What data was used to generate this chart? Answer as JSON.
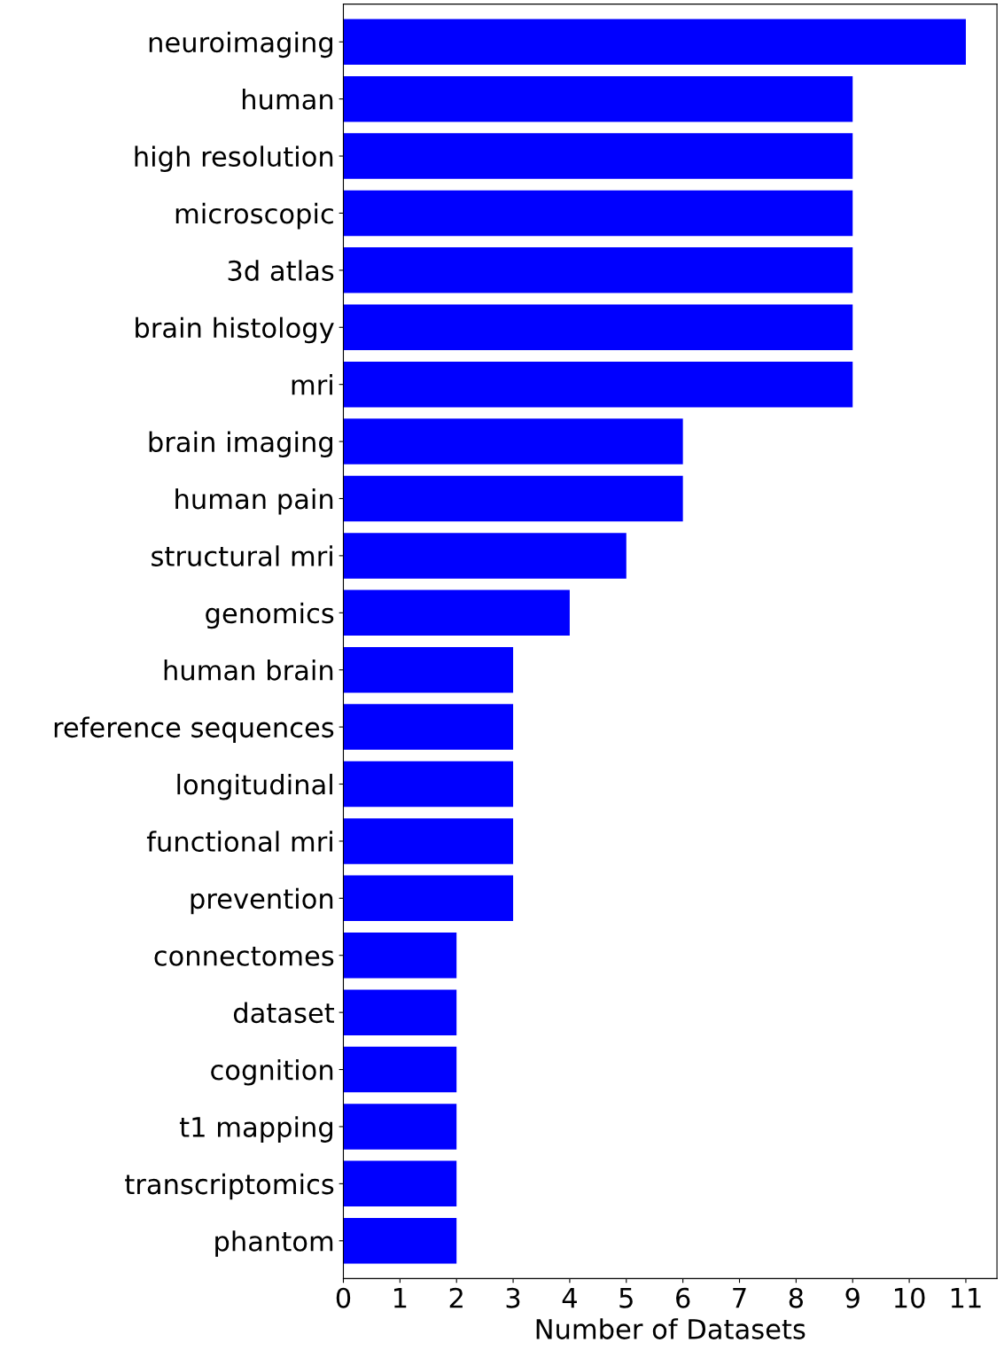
{
  "chart_data": {
    "type": "bar",
    "orientation": "horizontal",
    "xlabel": "Number of Datasets",
    "categories": [
      "neuroimaging",
      "human",
      "high resolution",
      "microscopic",
      "3d atlas",
      "brain histology",
      "mri",
      "brain imaging",
      "human pain",
      "structural mri",
      "genomics",
      "human brain",
      "reference sequences",
      "longitudinal",
      "functional mri",
      "prevention",
      "connectomes",
      "dataset",
      "cognition",
      "t1 mapping",
      "transcriptomics",
      "phantom"
    ],
    "values": [
      11,
      9,
      9,
      9,
      9,
      9,
      9,
      6,
      6,
      5,
      4,
      3,
      3,
      3,
      3,
      3,
      2,
      2,
      2,
      2,
      2,
      2
    ],
    "color": "#0000ff",
    "xlim": [
      0,
      11.55
    ],
    "xticks": [
      0,
      1,
      2,
      3,
      4,
      5,
      6,
      7,
      8,
      9,
      10,
      11
    ],
    "grid": false
  }
}
